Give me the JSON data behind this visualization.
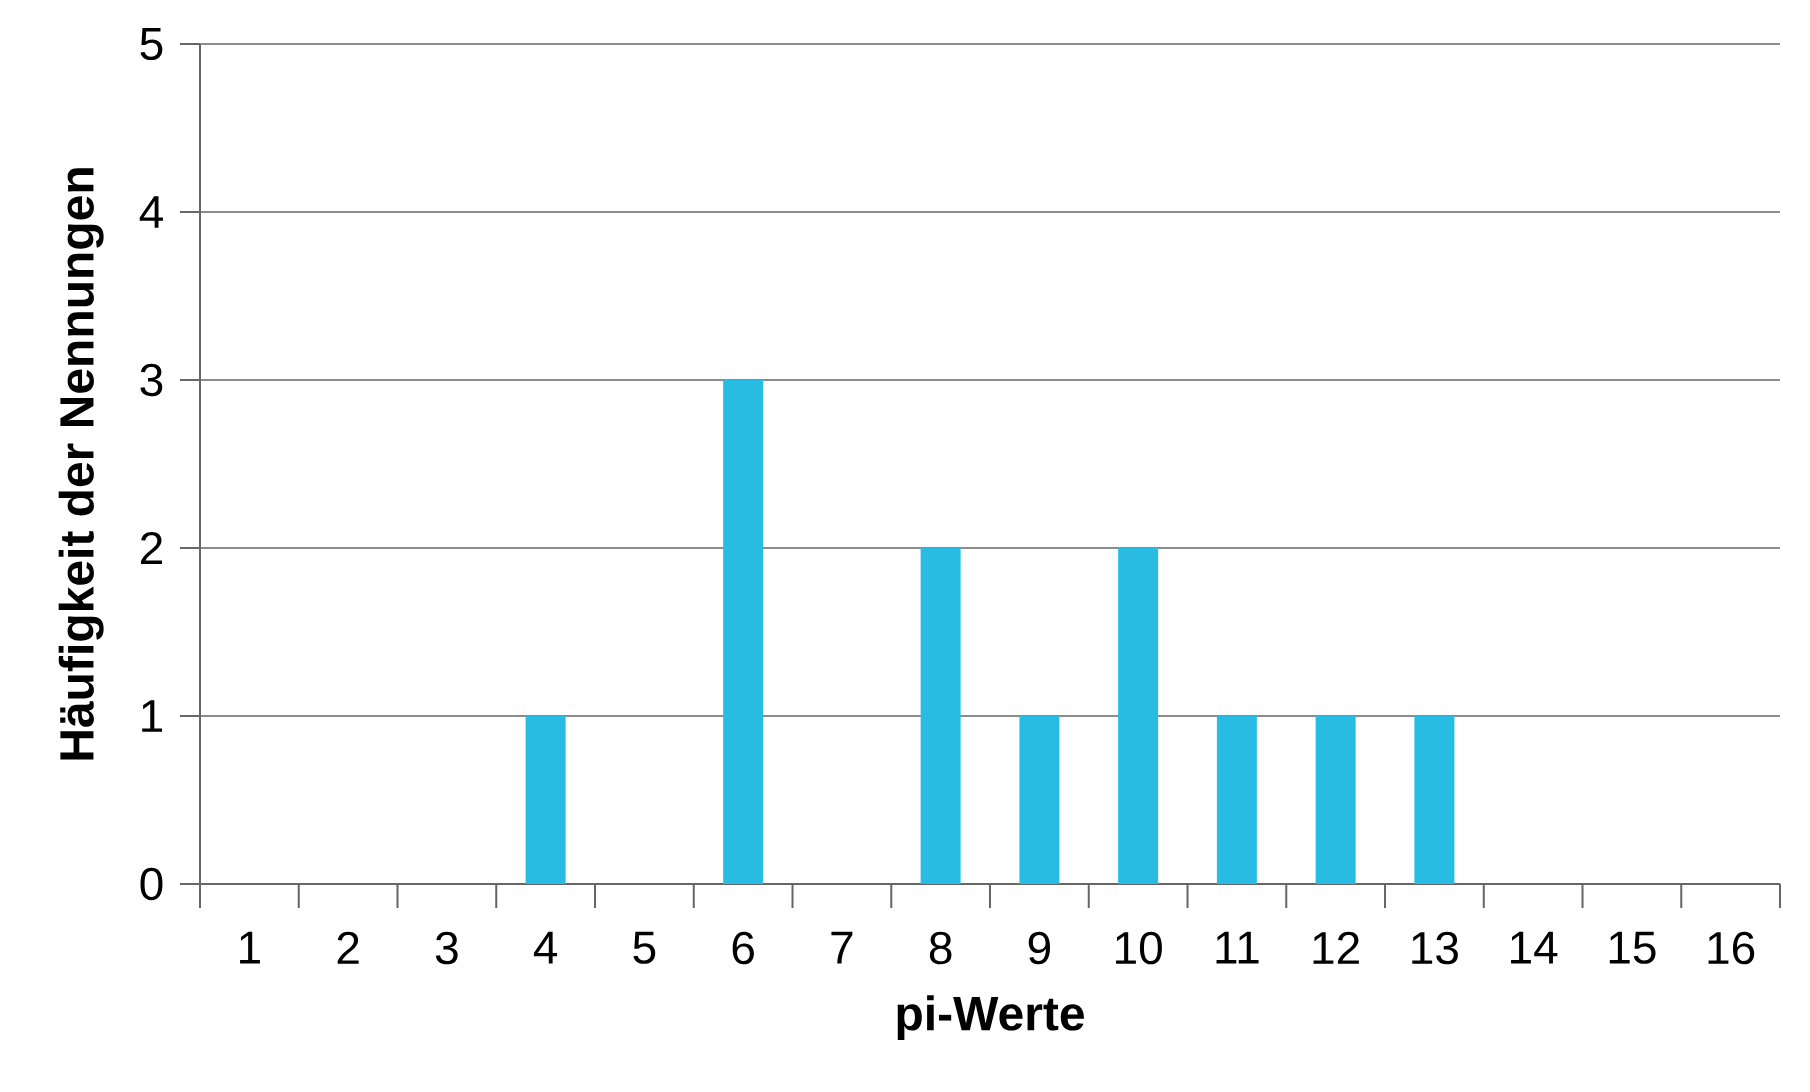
{
  "chart_data": {
    "type": "bar",
    "xlabel": "pi-Werte",
    "ylabel": "Häufigkeit der Nennungen",
    "categories": [
      "1",
      "2",
      "3",
      "4",
      "5",
      "6",
      "7",
      "8",
      "9",
      "10",
      "11",
      "12",
      "13",
      "14",
      "15",
      "16"
    ],
    "values": [
      0,
      0,
      0,
      1,
      0,
      3,
      0,
      2,
      1,
      2,
      1,
      1,
      1,
      0,
      0,
      0
    ],
    "color": "#29bce3",
    "ylim": [
      0,
      5
    ],
    "yticks": [
      0,
      1,
      2,
      3,
      4,
      5
    ],
    "grid": "y"
  }
}
